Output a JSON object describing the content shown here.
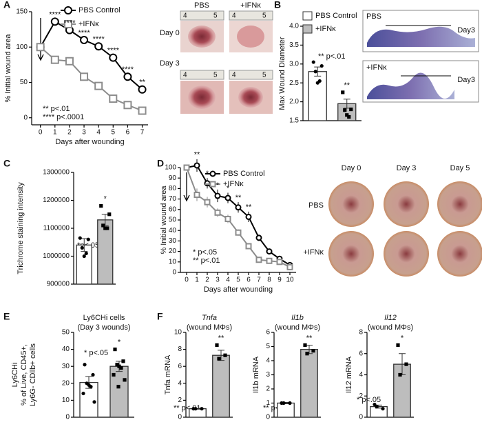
{
  "chart_data": [
    {
      "type": "line",
      "panel": "A",
      "xlabel": "Days after wounding",
      "ylabel": "% Initial wound area",
      "x": [
        0,
        1,
        2,
        3,
        4,
        5,
        6,
        7
      ],
      "xlim": [
        -0.6,
        7.4
      ],
      "xticks": [
        0,
        1,
        2,
        3,
        4,
        5,
        6,
        7
      ],
      "ylim": [
        -10,
        150
      ],
      "yticks": [
        0,
        50,
        100,
        150
      ],
      "series": [
        {
          "name": "PBS Control",
          "color": "#000000",
          "marker": "circle",
          "values": [
            100,
            136,
            124,
            110,
            101,
            85,
            58,
            40
          ]
        },
        {
          "name": "+IFNκ",
          "color": "#8c8c8c",
          "marker": "square",
          "values": [
            100,
            82,
            80,
            58,
            45,
            27,
            18,
            10
          ]
        }
      ],
      "significance": [
        null,
        "****",
        "****",
        "****",
        "****",
        "****",
        "****",
        "**"
      ],
      "notes": [
        "** p<.01",
        "**** p<.0001"
      ]
    },
    {
      "type": "bar",
      "panel": "B",
      "ylabel": "Max Wound Diameter",
      "legend": true,
      "categories": [
        "PBS Control",
        "+IFNκ"
      ],
      "colors": [
        "#ffffff",
        "#bdbdbd"
      ],
      "markers": [
        "circle",
        "square"
      ],
      "values": [
        2.8,
        1.95
      ],
      "errors": [
        0.12,
        0.12
      ],
      "points": [
        [
          3.05,
          2.95,
          2.8,
          2.55,
          2.5
        ],
        [
          2.25,
          1.8,
          1.78,
          1.6,
          1.65
        ]
      ],
      "ylim": [
        1.5,
        4.0
      ],
      "yticks": [
        1.5,
        {
          "value": 2.0,
          "label": "2.0"
        },
        2.5,
        {
          "value": 3.0,
          "label": "3.0"
        },
        3.5,
        {
          "value": 4.0,
          "label": "4.0"
        }
      ],
      "significance": [
        null,
        "**"
      ],
      "notes": [
        "** p<.01"
      ]
    },
    {
      "type": "bar",
      "panel": "C",
      "ylabel": "Trichrome staining intensity",
      "categories": [
        null,
        null
      ],
      "colors": [
        "#ffffff",
        "#bdbdbd"
      ],
      "markers": [
        "circle",
        "square"
      ],
      "values": [
        1040000,
        1130000
      ],
      "errors": [
        23000,
        20000
      ],
      "points": [
        [
          1065000,
          1060000,
          1030000,
          1010000,
          1000000
        ],
        [
          1180000,
          1150000,
          1110000,
          1100000,
          1100000
        ]
      ],
      "ylim": [
        900000,
        1300000
      ],
      "yticks": [
        900000,
        1000000,
        1100000,
        1200000,
        1300000
      ],
      "significance": [
        null,
        "*"
      ],
      "notes": [
        "*p<.05"
      ]
    },
    {
      "type": "line",
      "panel": "D",
      "xlabel": "Days after wounding",
      "ylabel": "% Initial wound area",
      "x": [
        0,
        1,
        2,
        3,
        4,
        5,
        6,
        7,
        8,
        9,
        10
      ],
      "xlim": [
        -0.6,
        10.6
      ],
      "xticks": [
        0,
        1,
        2,
        3,
        4,
        5,
        6,
        7,
        8,
        9,
        10
      ],
      "ylim": [
        0,
        100
      ],
      "yticks": [
        0,
        10,
        20,
        30,
        40,
        50,
        60,
        70,
        80,
        90,
        100
      ],
      "series": [
        {
          "name": "PBS Control",
          "color": "#000000",
          "marker": "circle",
          "values": [
            100,
            102,
            85,
            73,
            71,
            62,
            53,
            33,
            20,
            13,
            7
          ],
          "errors": [
            0,
            6,
            5,
            6,
            5,
            5,
            5,
            3,
            2,
            2,
            1
          ]
        },
        {
          "name": "+IFNκ",
          "color": "#8c8c8c",
          "marker": "square",
          "values": [
            100,
            74,
            67,
            57,
            51,
            38,
            25,
            12,
            11,
            10,
            5
          ],
          "errors": [
            0,
            6,
            5,
            4,
            4,
            3,
            3,
            2,
            2,
            2,
            1
          ]
        }
      ],
      "significance": [
        null,
        "**",
        "*",
        "*",
        "*",
        "**",
        "**",
        null,
        null,
        null,
        null
      ],
      "notes": [
        "* p<.05",
        "** p<.01"
      ]
    },
    {
      "type": "bar",
      "panel": "E",
      "title": [
        "Ly6CHi cells",
        "(Day 3 wounds)"
      ],
      "ylabel": [
        "Ly6CHi",
        "% of Live, CD45+,",
        "Ly6G- CDllb+ cells"
      ],
      "categories": [
        null,
        null
      ],
      "colors": [
        "#ffffff",
        "#bdbdbd"
      ],
      "markers": [
        "circle",
        "square"
      ],
      "values": [
        20.5,
        30
      ],
      "errors": [
        3.5,
        3
      ],
      "points": [
        [
          31,
          25,
          20,
          18,
          19,
          14,
          9
        ],
        [
          40,
          33,
          31,
          29,
          30,
          25,
          22,
          18
        ]
      ],
      "ylim": [
        0,
        50
      ],
      "yticks": [
        0,
        10,
        20,
        30,
        40,
        50
      ],
      "significance": [
        null,
        "*"
      ],
      "notes": [
        "* p<.05"
      ]
    },
    {
      "type": "bar",
      "panel": "F",
      "title": [
        "Tnfa",
        "(wound MΦs)"
      ],
      "ylabel": "Tnfa mRNA",
      "categories": [
        null,
        null
      ],
      "colors": [
        "#ffffff",
        "#bdbdbd"
      ],
      "markers": [
        "circle",
        "square"
      ],
      "values": [
        1,
        7.3
      ],
      "errors": [
        0.05,
        0.6
      ],
      "points": [
        [
          1,
          1,
          1
        ],
        [
          8.5,
          7.3,
          6.9
        ]
      ],
      "ylim": [
        0,
        10
      ],
      "yticks": [
        0,
        2,
        4,
        6,
        8,
        10
      ],
      "significance": [
        null,
        "**"
      ],
      "notes": [
        "** p<.01"
      ]
    },
    {
      "type": "bar",
      "title": [
        "Il1b",
        "(wound MΦs)"
      ],
      "ylabel": "Il1b mRNA",
      "categories": [
        null,
        null
      ],
      "colors": [
        "#ffffff",
        "#bdbdbd"
      ],
      "markers": [
        "circle",
        "square"
      ],
      "values": [
        1,
        4.8
      ],
      "errors": [
        0.05,
        0.3
      ],
      "points": [
        [
          1,
          1,
          1
        ],
        [
          5.1,
          4.7,
          4.5
        ]
      ],
      "ylim": [
        0,
        6
      ],
      "yticks": [
        0,
        1,
        2,
        3,
        4,
        5,
        6
      ],
      "significance": [
        null,
        "**"
      ],
      "notes": [
        "** p<.01"
      ]
    },
    {
      "type": "bar",
      "title": [
        "Il12",
        "(wound MΦs)"
      ],
      "ylabel": "Il12 mRNA",
      "categories": [
        null,
        null
      ],
      "colors": [
        "#ffffff",
        "#bdbdbd"
      ],
      "markers": [
        "circle",
        "square"
      ],
      "values": [
        1,
        5
      ],
      "errors": [
        0.15,
        1
      ],
      "points": [
        [
          1.2,
          0.8,
          1.0
        ],
        [
          6.8,
          5.0,
          4.0
        ]
      ],
      "ylim": [
        0,
        8
      ],
      "yticks": [
        0,
        2,
        4,
        6,
        8
      ],
      "significance": [
        null,
        "*"
      ],
      "notes": [
        "* p<.05"
      ]
    }
  ],
  "photos": {
    "A": {
      "columns": [
        "PBS",
        "+IFNκ"
      ],
      "rows": [
        "Day 0",
        "Day 3"
      ],
      "ruler": [
        "4",
        "5"
      ]
    },
    "B": {
      "labels": [
        "PBS",
        "Day3",
        "+IFNκ",
        "Day3"
      ]
    },
    "D": {
      "columns": [
        "Day 0",
        "Day 3",
        "Day 5"
      ],
      "rows": [
        "PBS",
        "+IFNκ"
      ]
    }
  }
}
